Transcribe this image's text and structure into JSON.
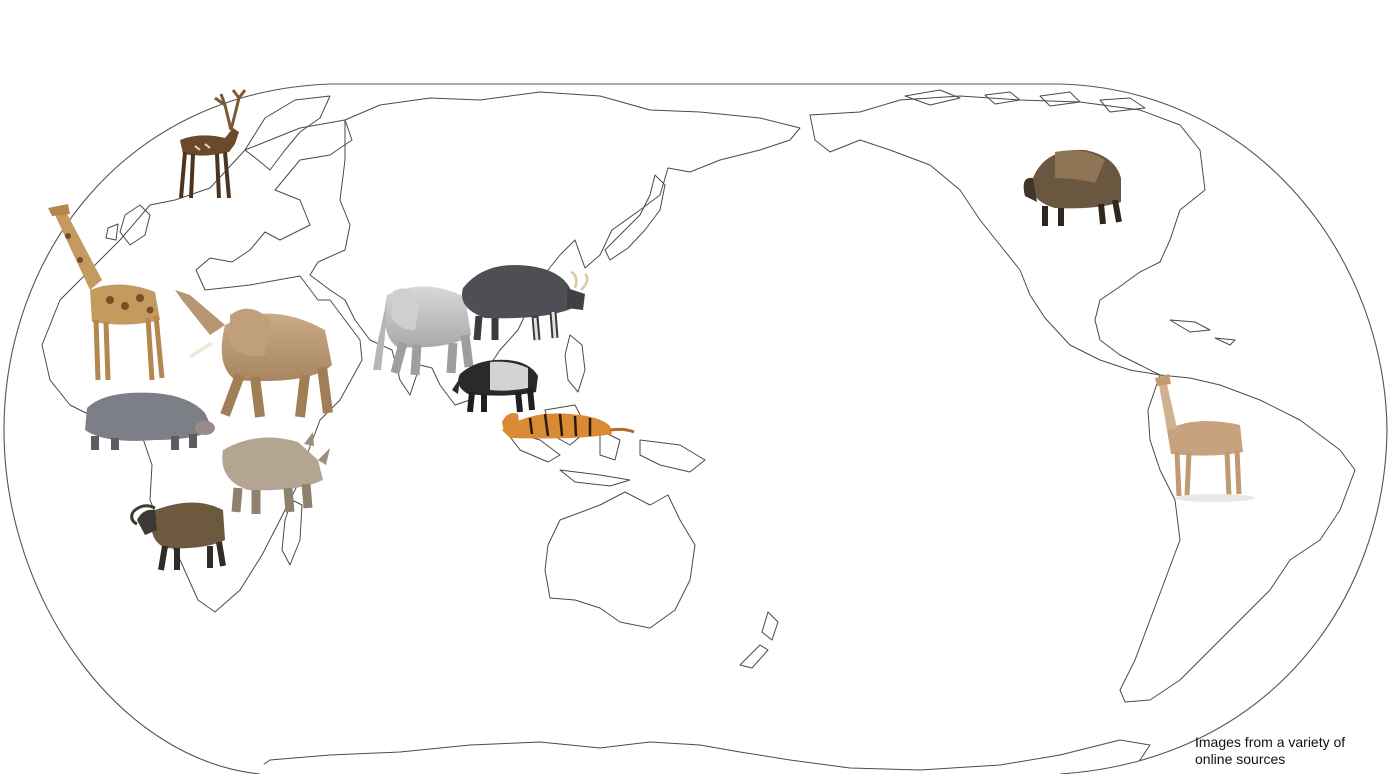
{
  "map": {
    "projection": "pacific-centered world outline",
    "animals": [
      {
        "name": "fallow deer",
        "icon": "deer-icon"
      },
      {
        "name": "giraffe",
        "icon": "giraffe-icon"
      },
      {
        "name": "african elephant",
        "icon": "african-elephant-icon"
      },
      {
        "name": "hippopotamus",
        "icon": "hippo-icon"
      },
      {
        "name": "rhinoceros",
        "icon": "rhino-icon"
      },
      {
        "name": "african buffalo",
        "icon": "african-buffalo-icon"
      },
      {
        "name": "asian elephant",
        "icon": "asian-elephant-icon"
      },
      {
        "name": "gaur",
        "icon": "gaur-icon"
      },
      {
        "name": "tapir",
        "icon": "tapir-icon"
      },
      {
        "name": "tiger",
        "icon": "tiger-icon"
      },
      {
        "name": "bison",
        "icon": "bison-icon"
      },
      {
        "name": "llama",
        "icon": "llama-icon"
      }
    ],
    "colors": {
      "coastline": "#4a4a4a",
      "background": "#ffffff"
    }
  },
  "credit": {
    "line1": "Images from a variety of",
    "line2": "online sources"
  }
}
